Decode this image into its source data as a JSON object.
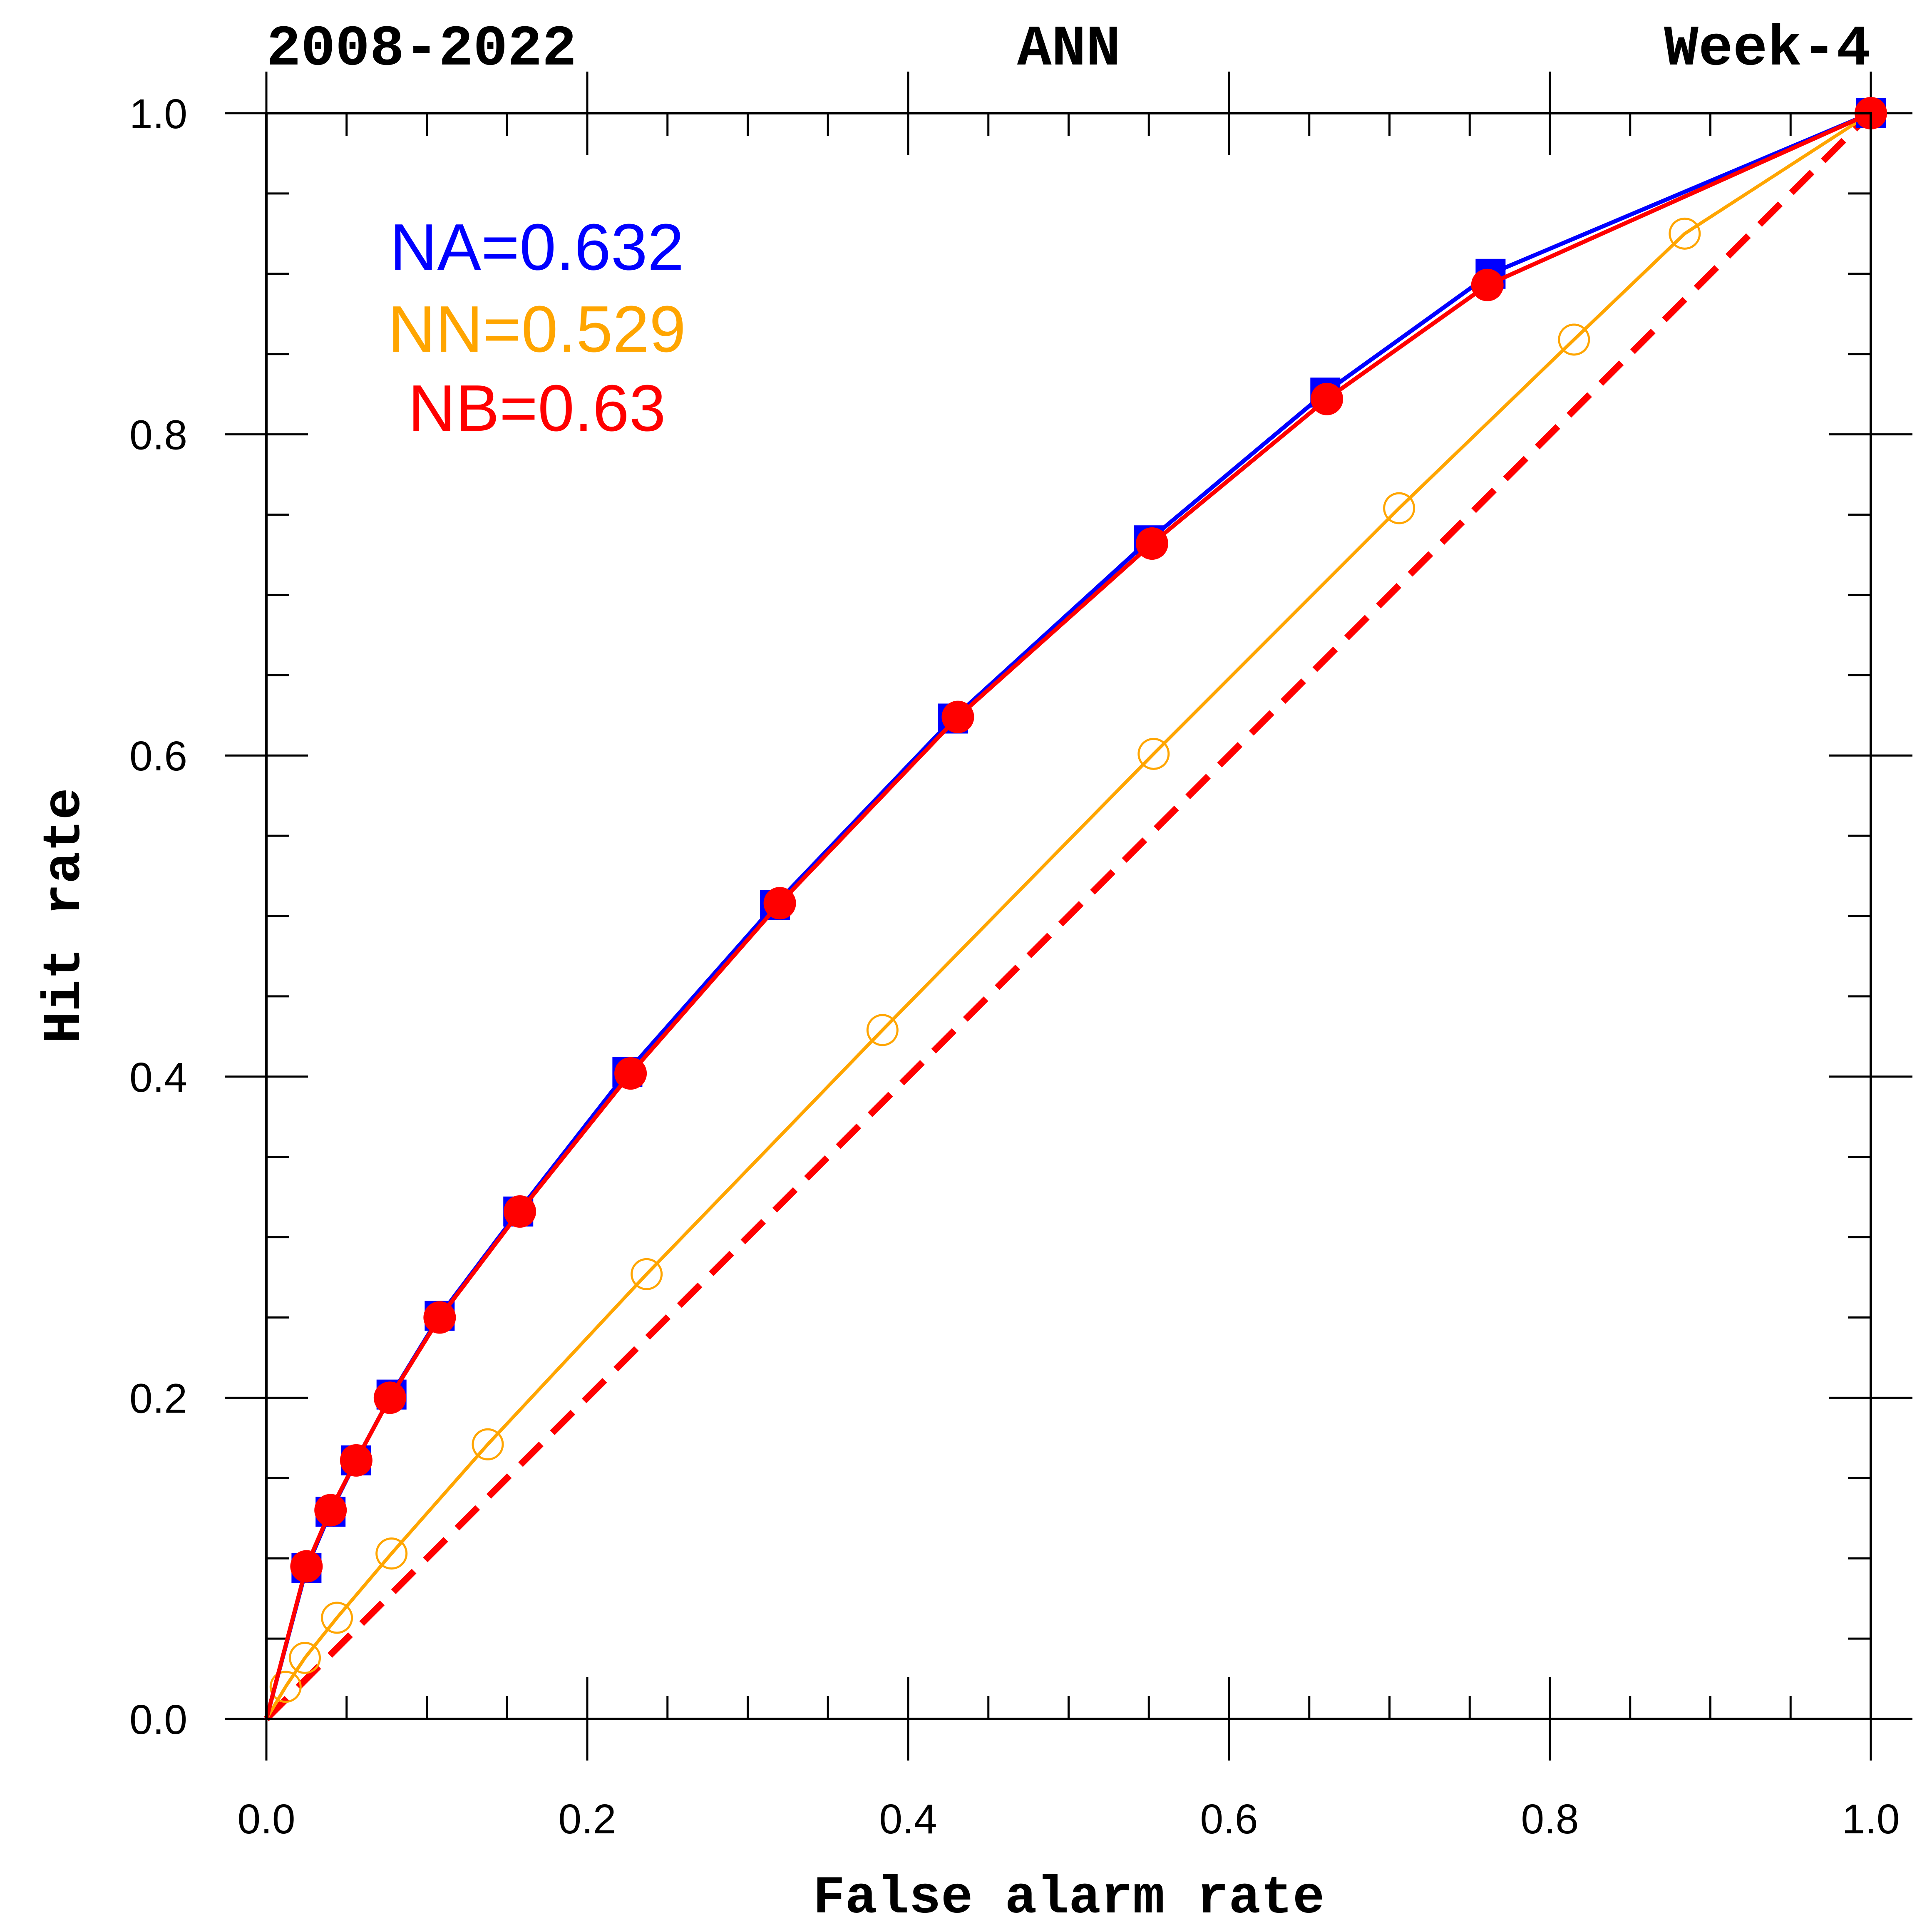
{
  "header": {
    "left": "2008-2022",
    "center": "ANN",
    "right": "Week-4"
  },
  "chart_data": {
    "type": "line",
    "xlabel": "False alarm rate",
    "ylabel": "Hit rate",
    "xlim": [
      0,
      1
    ],
    "ylim": [
      0,
      1
    ],
    "x_ticks": [
      "0.0",
      "0.2",
      "0.4",
      "0.6",
      "0.8",
      "1.0"
    ],
    "y_ticks": [
      "0.0",
      "0.2",
      "0.4",
      "0.6",
      "0.8",
      "1.0"
    ],
    "grid": false,
    "series": [
      {
        "name": "NA",
        "color": "#0000ff",
        "marker": "square",
        "x": [
          0,
          0.025,
          0.04,
          0.056,
          0.078,
          0.108,
          0.157,
          0.225,
          0.317,
          0.428,
          0.55,
          0.66,
          0.763,
          1.0
        ],
        "y": [
          0,
          0.094,
          0.129,
          0.161,
          0.202,
          0.251,
          0.316,
          0.403,
          0.507,
          0.623,
          0.734,
          0.826,
          0.9,
          1.0
        ]
      },
      {
        "name": "NN",
        "color": "#ffa500",
        "marker": "open-circle",
        "x": [
          0,
          0.012,
          0.024,
          0.044,
          0.078,
          0.138,
          0.237,
          0.384,
          0.553,
          0.706,
          0.815,
          0.884,
          1.0
        ],
        "y": [
          0,
          0.02,
          0.038,
          0.063,
          0.103,
          0.171,
          0.277,
          0.429,
          0.601,
          0.754,
          0.859,
          0.925,
          1.0
        ]
      },
      {
        "name": "NB",
        "color": "#ff0000",
        "marker": "filled-circle",
        "x": [
          0,
          0.025,
          0.04,
          0.056,
          0.077,
          0.108,
          0.158,
          0.227,
          0.32,
          0.431,
          0.552,
          0.661,
          0.761,
          1.0
        ],
        "y": [
          0,
          0.095,
          0.13,
          0.161,
          0.2,
          0.25,
          0.316,
          0.402,
          0.508,
          0.624,
          0.732,
          0.822,
          0.893,
          1.0
        ]
      }
    ],
    "reference_line": {
      "x": [
        0,
        1
      ],
      "y": [
        0,
        1
      ],
      "color": "#ff0000",
      "style": "dashed"
    },
    "scores": [
      {
        "label": "NA=0.632",
        "color": "#0000ff"
      },
      {
        "label": "NN=0.529",
        "color": "#ffa500"
      },
      {
        "label": "NB=0.63",
        "color": "#ff0000"
      }
    ],
    "legend_placement": "top-left"
  }
}
